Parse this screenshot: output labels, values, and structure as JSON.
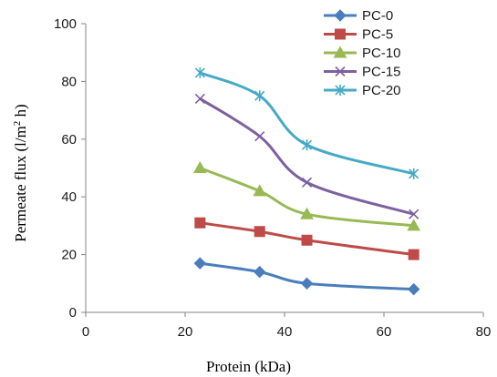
{
  "chart_data": {
    "type": "line",
    "xlabel": "Protein (kDa)",
    "ylabel_text": "Permeate flux (l/m",
    "ylabel_sup": "2",
    "ylabel_tail": " h)",
    "xlim": [
      0,
      80
    ],
    "ylim": [
      0,
      100
    ],
    "xticks": [
      "0",
      "20",
      "40",
      "60",
      "80"
    ],
    "yticks": [
      "0",
      "20",
      "40",
      "60",
      "80",
      "100"
    ],
    "grid": false,
    "legend_position": "top-right",
    "x": [
      23,
      35,
      44.5,
      66
    ],
    "series": [
      {
        "name": "PC-0",
        "values": [
          17,
          14,
          10,
          8
        ],
        "color": "#4a7ebb",
        "marker": "diamond"
      },
      {
        "name": "PC-5",
        "values": [
          31,
          28,
          25,
          20
        ],
        "color": "#be4b48",
        "marker": "square"
      },
      {
        "name": "PC-10",
        "values": [
          50,
          42,
          34,
          30
        ],
        "color": "#98b954",
        "marker": "triangle"
      },
      {
        "name": "PC-15",
        "values": [
          74,
          61,
          45,
          34
        ],
        "color": "#7d60a0",
        "marker": "x"
      },
      {
        "name": "PC-20",
        "values": [
          83,
          75,
          58,
          48
        ],
        "color": "#46aac5",
        "marker": "star"
      }
    ]
  }
}
